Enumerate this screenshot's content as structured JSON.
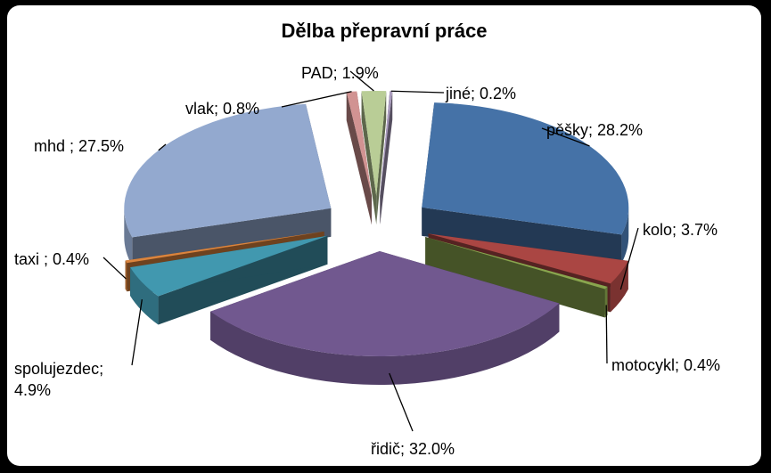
{
  "chart_data": {
    "type": "pie",
    "title": "Dělba přepravní práce",
    "categories": [
      "pěšky",
      "kolo",
      "motocykl",
      "řidič",
      "spolujezdec",
      "taxi",
      "mhd",
      "vlak",
      "PAD",
      "jiné"
    ],
    "values": [
      28.2,
      3.7,
      0.4,
      32.0,
      4.9,
      0.4,
      27.5,
      0.8,
      1.9,
      0.2
    ],
    "data_labels": [
      [
        "pěšky; 28.2%"
      ],
      [
        "kolo; 3.7%"
      ],
      [
        "motocykl; 0.4%"
      ],
      [
        "řidič; 32.0%"
      ],
      [
        "spolujezdec;",
        "4.9%"
      ],
      [
        "taxi ; 0.4%"
      ],
      [
        "mhd ; 27.5%"
      ],
      [
        "vlak; 0.8%"
      ],
      [
        "PAD; 1.9%"
      ],
      [
        "jiné; 0.2%"
      ]
    ],
    "colors": [
      "#4572A7",
      "#AA4643",
      "#89A54E",
      "#71588F",
      "#4198AF",
      "#DB843D",
      "#93A9CF",
      "#D19392",
      "#B9CD96",
      "#A99BBD"
    ],
    "legend": "none",
    "style": "exploded-3d-pie"
  }
}
